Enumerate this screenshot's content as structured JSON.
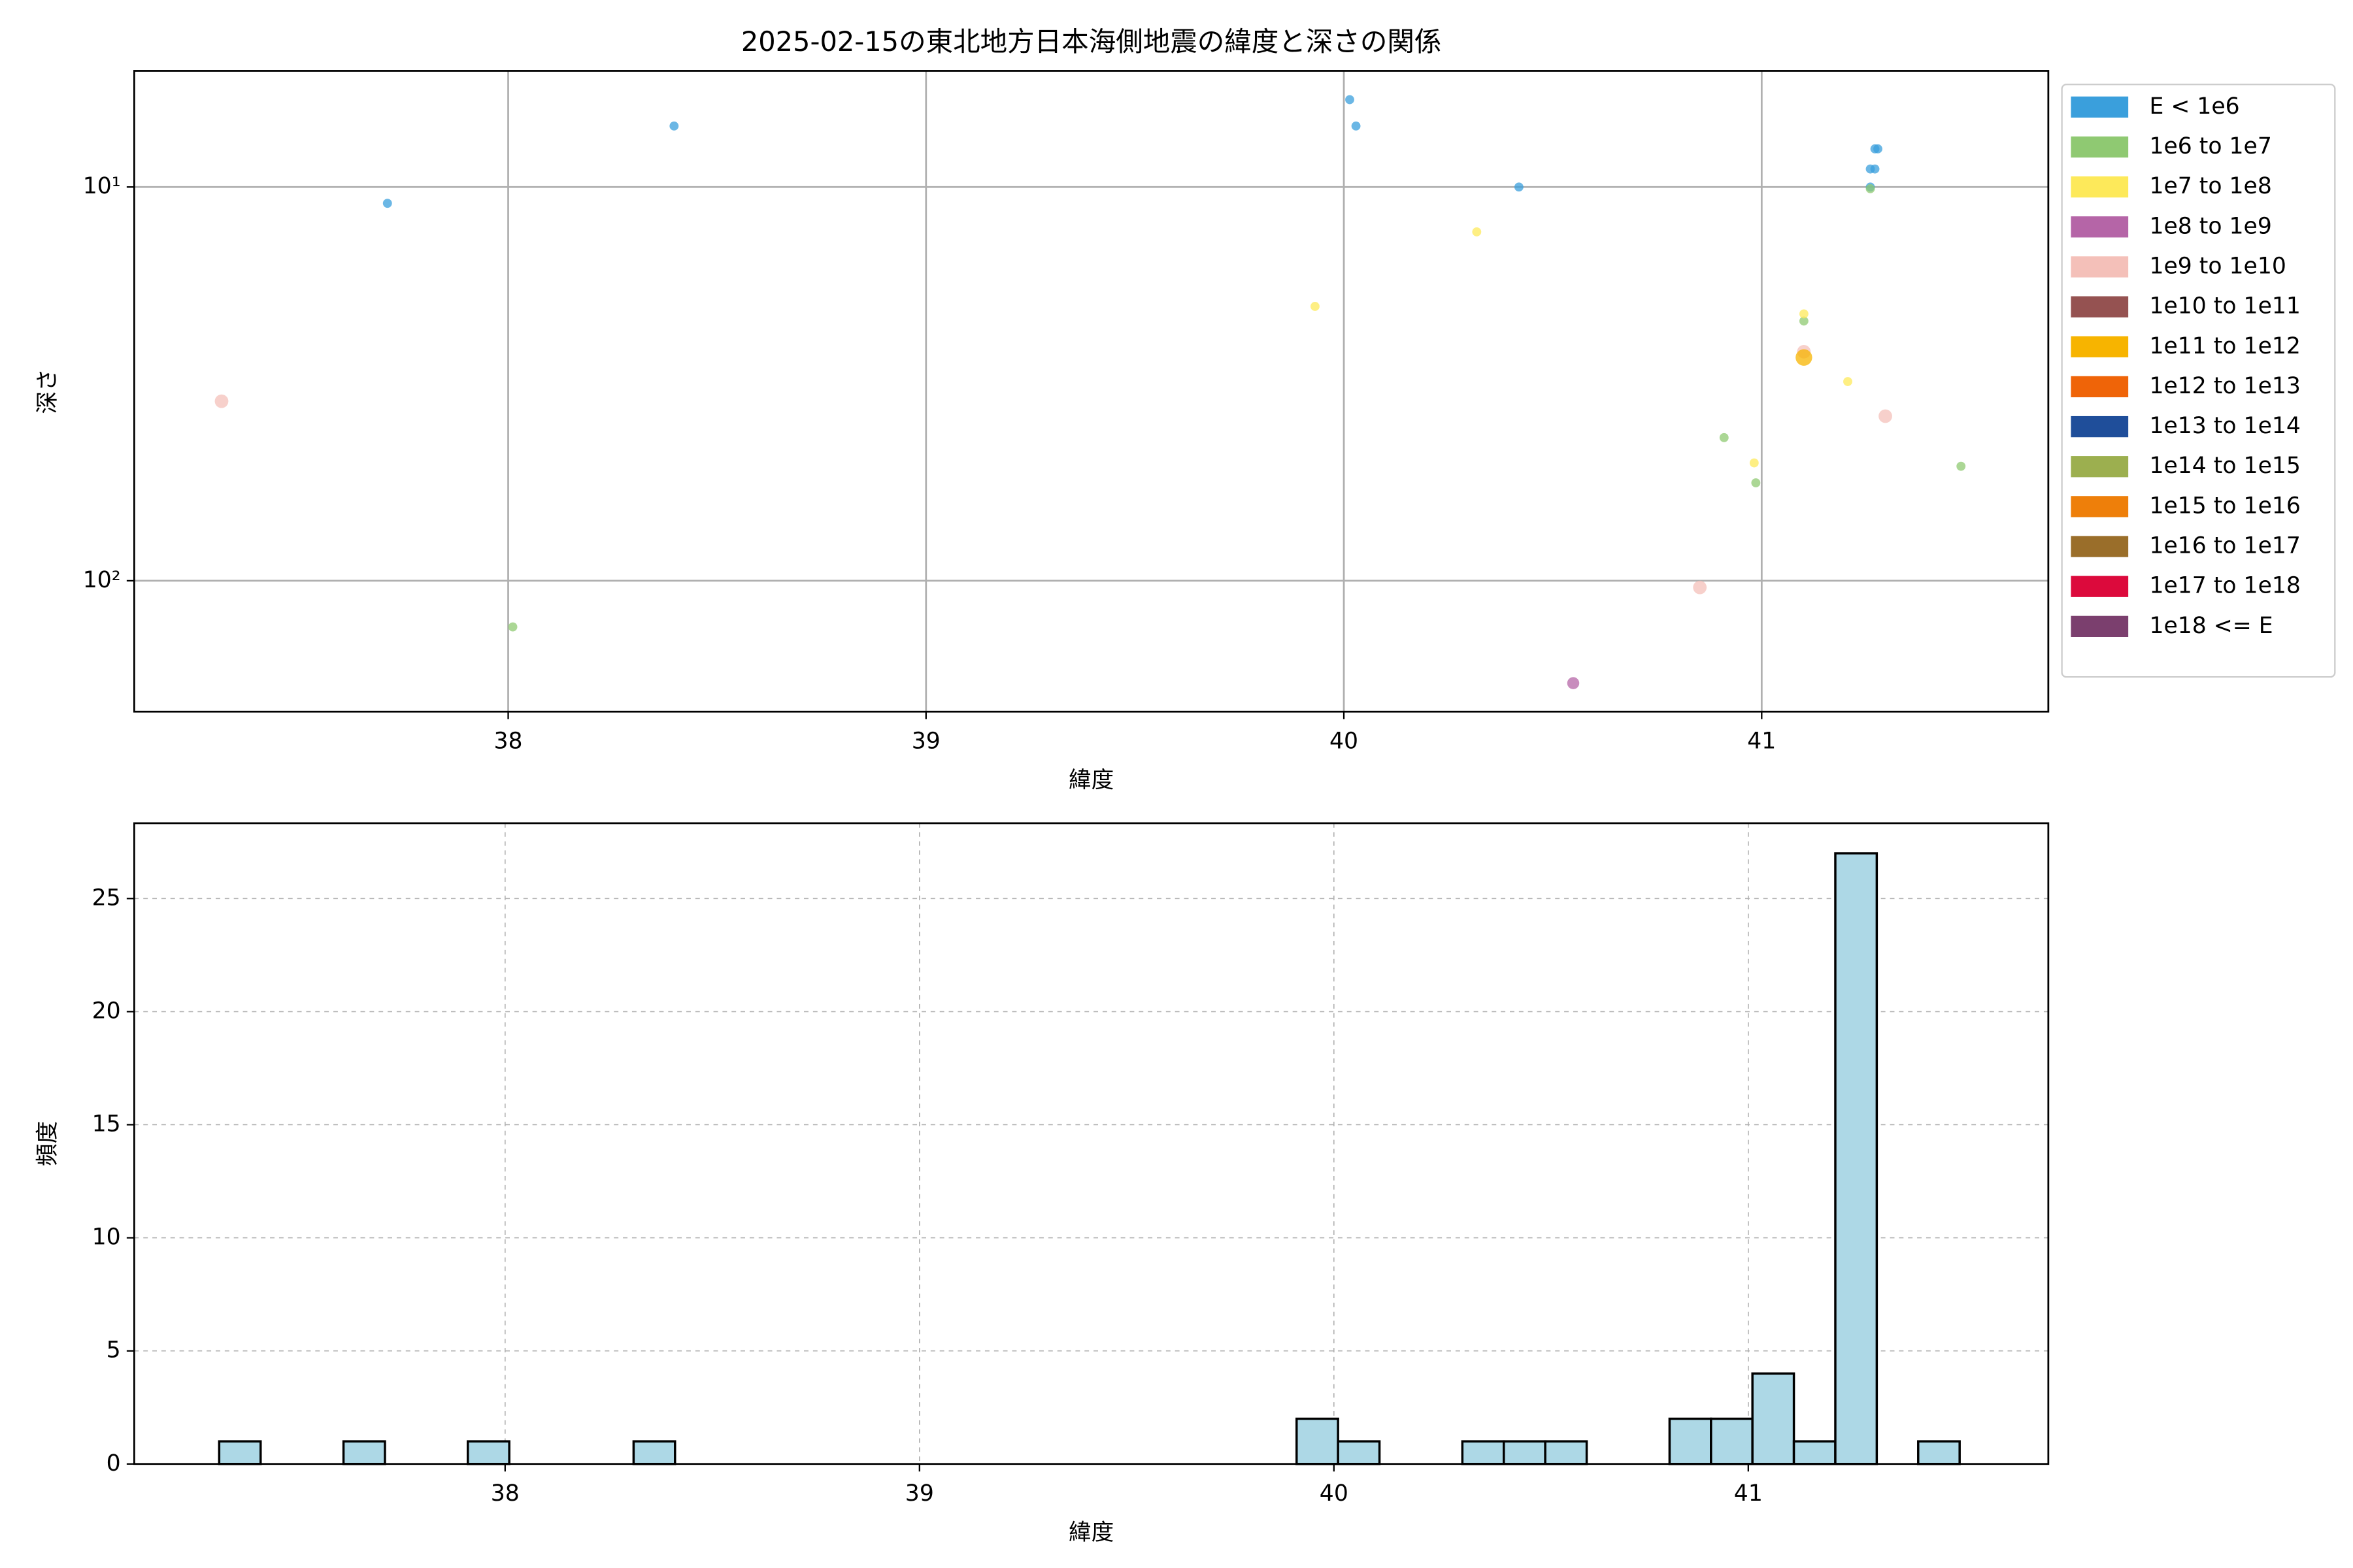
{
  "chart_data": [
    {
      "type": "scatter",
      "title": "2025-02-15の東北地方日本海側地震の緯度と深さの関係",
      "xlabel": "緯度",
      "ylabel": "深さ",
      "xlim": [
        37.105,
        41.686
      ],
      "xticks": [
        38,
        39,
        40,
        41
      ],
      "ylim": [
        5.07,
        215
      ],
      "yscale": "log",
      "y_inverted": true,
      "yticks": [
        {
          "value": 10,
          "label": "10¹"
        },
        {
          "value": 100,
          "label": "10²"
        }
      ],
      "grid": true,
      "grid_style": "solid",
      "legend": "right",
      "alpha": 0.75,
      "series": [
        {
          "name": "E < 1e6",
          "color": "#3a9fdc",
          "marker_size": 3,
          "x": [
            37.711,
            38.397,
            40.014,
            40.029,
            40.419,
            41.271,
            41.278,
            41.26,
            41.271,
            41.26
          ],
          "values": [
            11,
            7,
            6,
            7,
            10,
            8,
            8,
            9,
            9,
            10
          ]
        },
        {
          "name": "1e6 to 1e7",
          "color": "#8fc972",
          "marker_size": 3,
          "x": [
            38.011,
            40.91,
            40.986,
            41.101,
            41.477,
            41.26
          ],
          "values": [
            131,
            43.3,
            56.4,
            21.9,
            51.2,
            10.1
          ]
        },
        {
          "name": "1e7 to 1e8",
          "color": "#fde95a",
          "marker_size": 3,
          "x": [
            39.931,
            40.318,
            40.982,
            41.101,
            41.206
          ],
          "values": [
            20.1,
            13,
            50.2,
            21,
            31.2
          ]
        },
        {
          "name": "1e8 to 1e9",
          "color": "#b565a7",
          "marker_size": 4,
          "x": [
            40.549
          ],
          "values": [
            182
          ]
        },
        {
          "name": "1e9 to 1e10",
          "color": "#f4c0b9",
          "marker_size": 4.5,
          "x": [
            37.314,
            40.852,
            41.101,
            41.296
          ],
          "values": [
            35,
            104,
            26.2,
            38.2
          ]
        },
        {
          "name": "1e10 to 1e11",
          "color": "#955251",
          "marker_size": 5,
          "x": [],
          "values": []
        },
        {
          "name": "1e11 to 1e12",
          "color": "#f7b400",
          "marker_size": 5.5,
          "x": [
            41.101
          ],
          "values": [
            27.1
          ]
        },
        {
          "name": "1e12 to 1e13",
          "color": "#ef6408",
          "marker_size": 6,
          "x": [],
          "values": []
        },
        {
          "name": "1e13 to 1e14",
          "color": "#1f4e9a",
          "marker_size": 6,
          "x": [],
          "values": []
        },
        {
          "name": "1e14 to 1e15",
          "color": "#9caf4f",
          "marker_size": 6,
          "x": [],
          "values": []
        },
        {
          "name": "1e15 to 1e16",
          "color": "#ee7f0a",
          "marker_size": 6,
          "x": [],
          "values": []
        },
        {
          "name": "1e16 to 1e17",
          "color": "#9a6e2a",
          "marker_size": 6,
          "x": [],
          "values": []
        },
        {
          "name": "1e17 to 1e18",
          "color": "#dc0a3c",
          "marker_size": 6,
          "x": [],
          "values": []
        },
        {
          "name": "1e18 <= E",
          "color": "#7b3f6e",
          "marker_size": 6,
          "x": [],
          "values": []
        }
      ]
    },
    {
      "type": "histogram",
      "xlabel": "緯度",
      "ylabel": "頻度",
      "xlim": [
        37.105,
        41.724
      ],
      "xticks": [
        38,
        39,
        40,
        41
      ],
      "ylim": [
        0,
        28.33
      ],
      "yticks": [
        0,
        5,
        10,
        15,
        20,
        25
      ],
      "grid": true,
      "grid_style": "dashed",
      "color": "#add8e6",
      "edgecolor": "#000000",
      "bins": [
        37.31,
        37.41,
        37.51,
        37.61,
        37.71,
        37.81,
        37.91,
        38.01,
        38.11,
        38.21,
        38.31,
        38.41,
        38.51,
        38.61,
        38.71,
        38.81,
        38.91,
        39.01,
        39.11,
        39.21,
        39.31,
        39.41,
        39.51,
        39.61,
        39.71,
        39.81,
        39.91,
        40.01,
        40.11,
        40.21,
        40.31,
        40.41,
        40.51,
        40.61,
        40.71,
        40.81,
        40.91,
        41.01,
        41.11,
        41.21,
        41.31,
        41.41,
        41.51
      ],
      "values": [
        1,
        0,
        0,
        1,
        0,
        0,
        1,
        0,
        0,
        0,
        1,
        0,
        0,
        0,
        0,
        0,
        0,
        0,
        0,
        0,
        0,
        0,
        0,
        0,
        0,
        0,
        2,
        1,
        0,
        0,
        1,
        1,
        1,
        0,
        0,
        2,
        2,
        4,
        1,
        27,
        0,
        1
      ]
    }
  ]
}
